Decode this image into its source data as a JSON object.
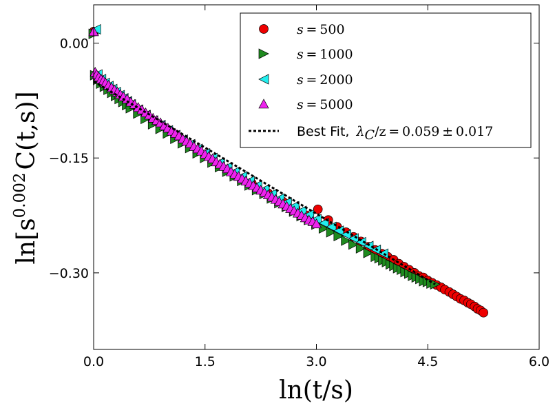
{
  "chart_data": {
    "type": "scatter",
    "xlabel": "ln(t/s)",
    "ylabel_parts": {
      "prefix": "ln[s",
      "exp": "0.002",
      "suffix": "C(t,s)]"
    },
    "xlim": [
      0.0,
      6.0
    ],
    "ylim": [
      -0.4,
      0.05
    ],
    "xticks": [
      0.0,
      1.5,
      3.0,
      4.5,
      6.0
    ],
    "xtick_labels": [
      "0.0",
      "1.5",
      "3.0",
      "4.5",
      "6.0"
    ],
    "yticks": [
      0.0,
      -0.15,
      -0.3
    ],
    "ytick_labels": [
      "0.00",
      "−0.15",
      "−0.30"
    ],
    "legend_position": "top-right",
    "series": [
      {
        "name": "s = 500",
        "legend_label": "s = 500",
        "marker": "circle",
        "color": "#ee0000",
        "x": [
          0.0,
          2.13,
          2.35,
          2.55,
          2.72,
          2.87,
          3.02,
          3.16,
          3.28,
          3.4,
          3.5,
          3.6,
          3.7,
          3.79,
          3.88,
          3.96,
          4.04,
          4.11,
          4.18,
          4.25,
          4.32,
          4.38,
          4.44,
          4.5,
          4.56,
          4.62,
          4.68,
          4.73,
          4.79,
          4.84,
          4.89,
          4.94,
          4.99,
          5.04,
          5.08,
          5.13,
          5.17,
          5.21,
          5.25
        ],
        "y": [
          0.015,
          -0.183,
          -0.196,
          -0.207,
          -0.216,
          -0.225,
          -0.217,
          -0.231,
          -0.24,
          -0.247,
          -0.253,
          -0.259,
          -0.266,
          -0.27,
          -0.275,
          -0.279,
          -0.283,
          -0.288,
          -0.292,
          -0.296,
          -0.3,
          -0.304,
          -0.306,
          -0.31,
          -0.313,
          -0.316,
          -0.319,
          -0.322,
          -0.325,
          -0.328,
          -0.331,
          -0.334,
          -0.336,
          -0.339,
          -0.341,
          -0.344,
          -0.347,
          -0.349,
          -0.352
        ]
      },
      {
        "name": "s = 1000",
        "legend_label": "s = 1000",
        "marker": "triangle-right",
        "color": "#1f8a1f",
        "x": [
          0.0,
          0.02,
          0.06,
          0.1,
          0.15,
          0.2,
          0.25,
          0.3,
          0.35,
          0.4,
          0.45,
          0.5,
          0.6,
          0.7,
          0.8,
          0.9,
          1.0,
          1.1,
          1.2,
          1.3,
          1.4,
          1.5,
          1.6,
          1.7,
          1.8,
          1.9,
          2.0,
          2.1,
          2.2,
          2.3,
          2.4,
          2.5,
          2.6,
          2.7,
          2.8,
          2.9,
          3.0,
          3.1,
          3.2,
          3.3,
          3.4,
          3.5,
          3.6,
          3.7,
          3.8,
          3.85,
          3.9,
          3.95,
          4.0,
          4.05,
          4.1,
          4.15,
          4.2,
          4.25,
          4.3,
          4.35,
          4.4,
          4.45,
          4.5,
          4.55,
          4.6
        ],
        "y": [
          0.012,
          -0.042,
          -0.048,
          -0.053,
          -0.057,
          -0.061,
          -0.065,
          -0.069,
          -0.073,
          -0.077,
          -0.081,
          -0.085,
          -0.092,
          -0.099,
          -0.106,
          -0.112,
          -0.118,
          -0.125,
          -0.131,
          -0.137,
          -0.144,
          -0.15,
          -0.156,
          -0.162,
          -0.168,
          -0.174,
          -0.18,
          -0.186,
          -0.192,
          -0.197,
          -0.203,
          -0.209,
          -0.214,
          -0.22,
          -0.226,
          -0.231,
          -0.237,
          -0.242,
          -0.247,
          -0.252,
          -0.258,
          -0.263,
          -0.268,
          -0.274,
          -0.279,
          -0.281,
          -0.284,
          -0.286,
          -0.289,
          -0.291,
          -0.294,
          -0.296,
          -0.299,
          -0.301,
          -0.304,
          -0.306,
          -0.308,
          -0.311,
          -0.312,
          -0.314,
          -0.315
        ]
      },
      {
        "name": "s = 2000",
        "legend_label": "s = 2000",
        "marker": "triangle-left",
        "color": "#22eeee",
        "x": [
          0.03,
          0.05,
          0.1,
          0.15,
          0.2,
          0.25,
          0.3,
          0.35,
          0.4,
          0.45,
          0.5,
          0.6,
          0.7,
          0.8,
          0.9,
          1.0,
          1.1,
          1.2,
          1.3,
          1.4,
          1.5,
          1.6,
          1.7,
          1.8,
          1.9,
          2.0,
          2.1,
          2.2,
          2.3,
          2.4,
          2.5,
          2.6,
          2.7,
          2.8,
          2.9,
          3.0,
          3.1,
          3.2,
          3.3,
          3.4,
          3.5,
          3.6,
          3.7,
          3.8,
          3.9
        ],
        "y": [
          0.018,
          -0.041,
          -0.047,
          -0.052,
          -0.056,
          -0.06,
          -0.064,
          -0.068,
          -0.072,
          -0.076,
          -0.08,
          -0.087,
          -0.094,
          -0.101,
          -0.107,
          -0.114,
          -0.12,
          -0.126,
          -0.132,
          -0.138,
          -0.144,
          -0.15,
          -0.156,
          -0.162,
          -0.168,
          -0.174,
          -0.18,
          -0.186,
          -0.191,
          -0.197,
          -0.203,
          -0.208,
          -0.213,
          -0.219,
          -0.224,
          -0.23,
          -0.235,
          -0.24,
          -0.245,
          -0.25,
          -0.255,
          -0.26,
          -0.265,
          -0.27,
          -0.275
        ]
      },
      {
        "name": "s = 5000",
        "legend_label": "s = 5000",
        "marker": "triangle-up",
        "color": "#ee22ee",
        "x": [
          0.0,
          0.02,
          0.04,
          0.07,
          0.1,
          0.13,
          0.16,
          0.2,
          0.24,
          0.28,
          0.32,
          0.36,
          0.4,
          0.45,
          0.5,
          0.55,
          0.6,
          0.65,
          0.7,
          0.75,
          0.8,
          0.85,
          0.9,
          0.95,
          1.0,
          1.05,
          1.1,
          1.15,
          1.2,
          1.25,
          1.3,
          1.35,
          1.4,
          1.45,
          1.5,
          1.55,
          1.6,
          1.65,
          1.7,
          1.75,
          1.8,
          1.85,
          1.9,
          1.95,
          2.0,
          2.05,
          2.1,
          2.15,
          2.2,
          2.25,
          2.3,
          2.35,
          2.4,
          2.45,
          2.5,
          2.55,
          2.6,
          2.65,
          2.7,
          2.75,
          2.8,
          2.85,
          2.9,
          2.95,
          3.0
        ],
        "y": [
          0.015,
          -0.038,
          -0.041,
          -0.044,
          -0.047,
          -0.049,
          -0.052,
          -0.055,
          -0.058,
          -0.061,
          -0.064,
          -0.067,
          -0.07,
          -0.073,
          -0.077,
          -0.08,
          -0.084,
          -0.087,
          -0.091,
          -0.094,
          -0.098,
          -0.101,
          -0.104,
          -0.108,
          -0.111,
          -0.115,
          -0.118,
          -0.121,
          -0.125,
          -0.128,
          -0.131,
          -0.135,
          -0.138,
          -0.141,
          -0.145,
          -0.148,
          -0.151,
          -0.155,
          -0.158,
          -0.161,
          -0.164,
          -0.168,
          -0.171,
          -0.174,
          -0.177,
          -0.18,
          -0.183,
          -0.186,
          -0.189,
          -0.192,
          -0.195,
          -0.198,
          -0.201,
          -0.204,
          -0.207,
          -0.21,
          -0.213,
          -0.216,
          -0.219,
          -0.222,
          -0.225,
          -0.228,
          -0.231,
          -0.233,
          -0.236
        ]
      }
    ],
    "fit": {
      "name": "Best Fit",
      "legend_prefix": "Best Fit, ",
      "legend_math": "λC/z = 0.059 ± 0.017",
      "lambda_sub": "C",
      "z_part": "/z = 0.059 ± 0.017",
      "style": "dotted",
      "color": "#000000",
      "x": [
        0.0,
        4.6
      ],
      "y": [
        -0.05,
        -0.315
      ]
    }
  }
}
